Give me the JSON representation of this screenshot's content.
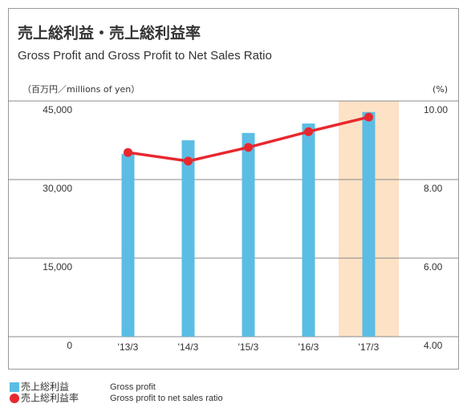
{
  "chart_data": {
    "type": "bar_line",
    "title": "売上総利益・売上総利益率",
    "subtitle": "Gross Profit and Gross Profit to Net Sales Ratio",
    "y_label": "（百万円／millions of yen）",
    "y2_label": "(%)",
    "categories": [
      "'13/3",
      "'14/3",
      "'15/3",
      "'16/3",
      "'17/3"
    ],
    "series": [
      {
        "name": "売上総利益",
        "name_en": "Gross profit",
        "type": "bar",
        "color": "#5bbde4",
        "values": [
          34900,
          37500,
          38900,
          40700,
          42900
        ]
      },
      {
        "name": "売上総利益率",
        "name_en": "Gross profit to net sales ratio",
        "type": "line",
        "axis": "y2",
        "color": "#e8282e",
        "values": [
          8.69,
          8.47,
          8.82,
          9.22,
          9.59
        ]
      }
    ],
    "ylim": [
      0,
      45000
    ],
    "yticks": [
      0,
      {
        "value": 15000,
        "label": "15,000"
      },
      {
        "value": 30000,
        "label": "30,000"
      },
      {
        "value": 45000,
        "label": "45,000"
      }
    ],
    "y2lim": [
      4,
      10
    ],
    "y2ticks": [
      {
        "value": 4,
        "label": "4.00"
      },
      {
        "value": 6,
        "label": "6.00"
      },
      {
        "value": 8,
        "label": "8.00"
      },
      {
        "value": 10,
        "label": "10.00"
      }
    ],
    "grid": true,
    "highlight": {
      "index": 4,
      "color": "#fde2c6"
    }
  }
}
